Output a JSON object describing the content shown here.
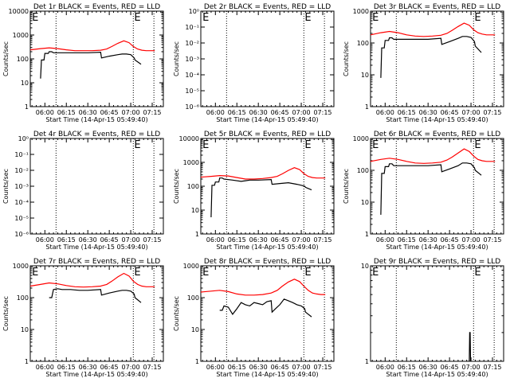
{
  "colors": {
    "events": "#000000",
    "lld": "#ff0000",
    "background": "#ffffff",
    "axes": "#000000"
  },
  "chart_data": [
    {
      "type": "line",
      "title": "Det 1r BLACK = Events, RED = LLD",
      "xlabel": "Start Time (14-Apr-15 05:49:40)",
      "ylabel": "Counts/sec",
      "xlim": [
        5.83,
        7.38
      ],
      "y_scale": "log",
      "ylim": [
        1,
        10000
      ],
      "x_ticks": [
        "06:00",
        "06:15",
        "06:30",
        "06:45",
        "07:00",
        "07:15"
      ],
      "y_ticks": [
        "1",
        "10",
        "100",
        "1000",
        "10000"
      ],
      "vlines": [
        6.13,
        7.03,
        7.27
      ],
      "e_markers": [
        5.85,
        7.04
      ],
      "grid": false,
      "legend": "none",
      "series": [
        {
          "name": "LLD",
          "x": [
            5.83,
            5.95,
            6.05,
            6.15,
            6.25,
            6.35,
            6.45,
            6.55,
            6.65,
            6.72,
            6.78,
            6.85,
            6.92,
            6.98,
            7.03,
            7.08,
            7.13,
            7.18,
            7.23,
            7.28
          ],
          "y": [
            240,
            270,
            290,
            270,
            240,
            220,
            220,
            220,
            230,
            260,
            330,
            450,
            570,
            480,
            330,
            260,
            230,
            220,
            220,
            220
          ]
        },
        {
          "name": "Events",
          "x": [
            5.95,
            5.96,
            5.99,
            6.0,
            6.04,
            6.05,
            6.08,
            6.1,
            6.2,
            6.3,
            6.4,
            6.5,
            6.65,
            6.66,
            6.75,
            6.85,
            6.9,
            6.95,
            7.0,
            7.04,
            7.05,
            7.12
          ],
          "y": [
            15,
            90,
            90,
            170,
            170,
            200,
            200,
            180,
            180,
            180,
            180,
            180,
            190,
            110,
            130,
            150,
            160,
            160,
            150,
            110,
            90,
            60
          ]
        }
      ]
    },
    {
      "type": "line",
      "title": "Det 2r BLACK = Events, RED = LLD",
      "xlabel": "Start Time (14-Apr-15 05:49:40)",
      "ylabel": "Counts/sec",
      "xlim": [
        5.83,
        7.38
      ],
      "y_scale": "log",
      "ylim": [
        1,
        1e-06
      ],
      "x_ticks": [
        "06:00",
        "06:15",
        "06:30",
        "06:45",
        "07:00",
        "07:15"
      ],
      "y_ticks": [
        "10⁻⁶",
        "10⁻⁵",
        "10⁻⁴",
        "10⁻³",
        "10⁻²",
        "10⁻¹",
        "10⁰"
      ],
      "vlines": [
        6.13,
        7.03,
        7.27
      ],
      "e_markers": [
        5.85,
        7.04
      ],
      "grid": false,
      "legend": "none",
      "series": []
    },
    {
      "type": "line",
      "title": "Det 3r BLACK = Events, RED = LLD",
      "xlabel": "Start Time (14-Apr-15 05:49:40)",
      "ylabel": "Counts/sec",
      "xlim": [
        5.83,
        7.38
      ],
      "y_scale": "log",
      "ylim": [
        1,
        1000
      ],
      "x_ticks": [
        "06:00",
        "06:15",
        "06:30",
        "06:45",
        "07:00",
        "07:15"
      ],
      "y_ticks": [
        "1",
        "10",
        "100",
        "1000"
      ],
      "vlines": [
        6.13,
        7.03,
        7.27
      ],
      "e_markers": [
        5.85,
        7.04
      ],
      "grid": false,
      "legend": "none",
      "series": [
        {
          "name": "LLD",
          "x": [
            5.83,
            5.95,
            6.05,
            6.15,
            6.25,
            6.35,
            6.45,
            6.55,
            6.65,
            6.72,
            6.78,
            6.85,
            6.92,
            6.98,
            7.03,
            7.08,
            7.13,
            7.18,
            7.23,
            7.28
          ],
          "y": [
            180,
            210,
            230,
            210,
            180,
            165,
            160,
            165,
            175,
            200,
            250,
            330,
            420,
            360,
            260,
            210,
            190,
            180,
            180,
            180
          ]
        },
        {
          "name": "Events",
          "x": [
            5.95,
            5.96,
            5.99,
            6.0,
            6.04,
            6.05,
            6.08,
            6.1,
            6.2,
            6.3,
            6.4,
            6.5,
            6.65,
            6.66,
            6.75,
            6.85,
            6.9,
            6.95,
            7.0,
            7.04,
            7.05,
            7.12
          ],
          "y": [
            8,
            70,
            70,
            120,
            120,
            145,
            145,
            130,
            130,
            130,
            130,
            130,
            140,
            90,
            110,
            140,
            160,
            160,
            150,
            110,
            80,
            50
          ]
        }
      ]
    },
    {
      "type": "line",
      "title": "Det 4r BLACK = Events, RED = LLD",
      "xlabel": "Start Time (14-Apr-15 05:49:40)",
      "ylabel": "Counts/sec",
      "xlim": [
        5.83,
        7.38
      ],
      "y_scale": "log",
      "ylim": [
        1,
        1e-06
      ],
      "x_ticks": [
        "06:00",
        "06:15",
        "06:30",
        "06:45",
        "07:00",
        "07:15"
      ],
      "y_ticks": [
        "10⁻⁶",
        "10⁻⁵",
        "10⁻⁴",
        "10⁻³",
        "10⁻²",
        "10⁻¹",
        "10⁰"
      ],
      "vlines": [
        6.13,
        7.03,
        7.27
      ],
      "e_markers": [
        7.04
      ],
      "grid": false,
      "legend": "none",
      "series": []
    },
    {
      "type": "line",
      "title": "Det 5r BLACK = Events, RED = LLD",
      "xlabel": "Start Time (14-Apr-15 05:49:40)",
      "ylabel": "Counts/sec",
      "xlim": [
        5.83,
        7.38
      ],
      "y_scale": "log",
      "ylim": [
        1,
        10000
      ],
      "x_ticks": [
        "06:00",
        "06:15",
        "06:30",
        "06:45",
        "07:00",
        "07:15"
      ],
      "y_ticks": [
        "1",
        "10",
        "100",
        "1000",
        "10000"
      ],
      "vlines": [
        6.13,
        7.03,
        7.27
      ],
      "e_markers": [
        5.85,
        7.04
      ],
      "grid": false,
      "legend": "none",
      "series": [
        {
          "name": "LLD",
          "x": [
            5.83,
            5.95,
            6.05,
            6.15,
            6.25,
            6.35,
            6.45,
            6.55,
            6.65,
            6.72,
            6.78,
            6.85,
            6.92,
            6.98,
            7.03,
            7.08,
            7.13,
            7.18,
            7.23,
            7.28
          ],
          "y": [
            240,
            260,
            280,
            270,
            230,
            200,
            200,
            210,
            230,
            260,
            330,
            460,
            600,
            500,
            340,
            260,
            230,
            220,
            220,
            220
          ]
        },
        {
          "name": "Events",
          "x": [
            5.95,
            5.96,
            5.99,
            6.0,
            6.04,
            6.05,
            6.08,
            6.1,
            6.2,
            6.3,
            6.35,
            6.4,
            6.5,
            6.65,
            6.66,
            6.75,
            6.85,
            6.9,
            6.95,
            7.0,
            7.04,
            7.05,
            7.12
          ],
          "y": [
            5,
            110,
            110,
            150,
            150,
            220,
            220,
            200,
            180,
            160,
            170,
            180,
            180,
            190,
            120,
            130,
            140,
            130,
            120,
            110,
            100,
            90,
            70
          ]
        }
      ]
    },
    {
      "type": "line",
      "title": "Det 6r BLACK = Events, RED = LLD",
      "xlabel": "Start Time (14-Apr-15 05:49:40)",
      "ylabel": "Counts/sec",
      "xlim": [
        5.83,
        7.38
      ],
      "y_scale": "log",
      "ylim": [
        1,
        1000
      ],
      "x_ticks": [
        "06:00",
        "06:15",
        "06:30",
        "06:45",
        "07:00",
        "07:15"
      ],
      "y_ticks": [
        "1",
        "10",
        "100",
        "1000"
      ],
      "vlines": [
        6.13,
        7.03,
        7.27
      ],
      "e_markers": [
        5.85,
        7.04
      ],
      "grid": false,
      "legend": "none",
      "series": [
        {
          "name": "LLD",
          "x": [
            5.83,
            5.95,
            6.05,
            6.15,
            6.25,
            6.35,
            6.45,
            6.55,
            6.65,
            6.72,
            6.78,
            6.85,
            6.92,
            6.98,
            7.03,
            7.08,
            7.13,
            7.18,
            7.23,
            7.28
          ],
          "y": [
            190,
            220,
            240,
            220,
            190,
            170,
            165,
            170,
            180,
            210,
            260,
            350,
            470,
            390,
            280,
            220,
            200,
            190,
            190,
            190
          ]
        },
        {
          "name": "Events",
          "x": [
            5.95,
            5.96,
            5.99,
            6.0,
            6.04,
            6.05,
            6.08,
            6.1,
            6.2,
            6.3,
            6.4,
            6.5,
            6.65,
            6.66,
            6.75,
            6.85,
            6.9,
            6.95,
            7.0,
            7.04,
            7.05,
            7.12
          ],
          "y": [
            4,
            80,
            80,
            130,
            130,
            160,
            160,
            140,
            140,
            140,
            140,
            140,
            150,
            90,
            110,
            140,
            170,
            170,
            160,
            120,
            100,
            70
          ]
        }
      ]
    },
    {
      "type": "line",
      "title": "Det 7r BLACK = Events, RED = LLD",
      "xlabel": "Start Time (14-Apr-15 05:49:40)",
      "ylabel": "Counts/sec",
      "xlim": [
        5.83,
        7.38
      ],
      "y_scale": "log",
      "ylim": [
        1,
        1000
      ],
      "x_ticks": [
        "06:00",
        "06:15",
        "06:30",
        "06:45",
        "07:00",
        "07:15"
      ],
      "y_ticks": [
        "1",
        "10",
        "100",
        "1000"
      ],
      "vlines": [
        6.13,
        7.03,
        7.27
      ],
      "e_markers": [
        5.85,
        7.04
      ],
      "grid": false,
      "legend": "none",
      "series": [
        {
          "name": "LLD",
          "x": [
            5.83,
            5.95,
            6.05,
            6.15,
            6.25,
            6.35,
            6.45,
            6.55,
            6.65,
            6.72,
            6.78,
            6.85,
            6.92,
            6.98,
            7.03,
            7.08,
            7.13,
            7.18,
            7.23,
            7.28
          ],
          "y": [
            230,
            260,
            290,
            270,
            240,
            220,
            215,
            220,
            230,
            260,
            330,
            450,
            580,
            480,
            330,
            260,
            230,
            220,
            220,
            220
          ]
        },
        {
          "name": "Events",
          "x": [
            6.05,
            6.08,
            6.1,
            6.15,
            6.2,
            6.3,
            6.4,
            6.5,
            6.65,
            6.66,
            6.75,
            6.85,
            6.9,
            6.95,
            7.0,
            7.04,
            7.05,
            7.12
          ],
          "y": [
            100,
            100,
            180,
            190,
            180,
            180,
            170,
            170,
            180,
            120,
            140,
            160,
            170,
            170,
            160,
            130,
            100,
            70
          ]
        }
      ]
    },
    {
      "type": "line",
      "title": "Det 8r BLACK = Events, RED = LLD",
      "xlabel": "Start Time (14-Apr-15 05:49:40)",
      "ylabel": "Counts/sec",
      "xlim": [
        5.83,
        7.38
      ],
      "y_scale": "log",
      "ylim": [
        1,
        1000
      ],
      "x_ticks": [
        "06:00",
        "06:15",
        "06:30",
        "06:45",
        "07:00",
        "07:15"
      ],
      "y_ticks": [
        "1",
        "10",
        "100",
        "1000"
      ],
      "vlines": [
        6.13,
        7.03,
        7.27
      ],
      "e_markers": [
        5.85,
        7.04
      ],
      "grid": false,
      "legend": "none",
      "series": [
        {
          "name": "LLD",
          "x": [
            5.83,
            5.95,
            6.05,
            6.15,
            6.25,
            6.35,
            6.45,
            6.55,
            6.65,
            6.72,
            6.78,
            6.85,
            6.92,
            6.98,
            7.03,
            7.08,
            7.13,
            7.18,
            7.23,
            7.28
          ],
          "y": [
            150,
            160,
            170,
            155,
            130,
            120,
            120,
            125,
            140,
            170,
            230,
            310,
            380,
            320,
            230,
            170,
            140,
            130,
            125,
            125
          ]
        },
        {
          "name": "Events",
          "x": [
            6.05,
            6.08,
            6.1,
            6.15,
            6.2,
            6.25,
            6.3,
            6.35,
            6.4,
            6.45,
            6.5,
            6.55,
            6.6,
            6.65,
            6.66,
            6.7,
            6.75,
            6.8,
            6.85,
            6.9,
            6.95,
            7.0,
            7.04,
            7.05,
            7.12
          ],
          "y": [
            40,
            40,
            55,
            50,
            30,
            45,
            70,
            60,
            55,
            70,
            65,
            60,
            75,
            80,
            35,
            45,
            60,
            90,
            80,
            70,
            60,
            55,
            45,
            35,
            25
          ]
        }
      ]
    },
    {
      "type": "line",
      "title": "Det 9r BLACK = Events, RED = LLD",
      "xlabel": "Start Time (14-Apr-15 05:49:40)",
      "ylabel": "",
      "xlim": [
        5.83,
        7.38
      ],
      "y_scale": "log",
      "ylim": [
        1,
        10
      ],
      "x_ticks": [
        "06:00",
        "06:15",
        "06:30",
        "06:45",
        "07:00",
        "07:15"
      ],
      "y_ticks": [
        "1",
        "10"
      ],
      "vlines": [
        6.13,
        7.03,
        7.27
      ],
      "e_markers": [
        5.85,
        7.04
      ],
      "grid": false,
      "legend": "none",
      "series": [
        {
          "name": "Events",
          "x": [
            6.98,
            6.985,
            6.99,
            6.995
          ],
          "y": [
            1,
            2,
            2,
            1
          ]
        }
      ]
    }
  ]
}
